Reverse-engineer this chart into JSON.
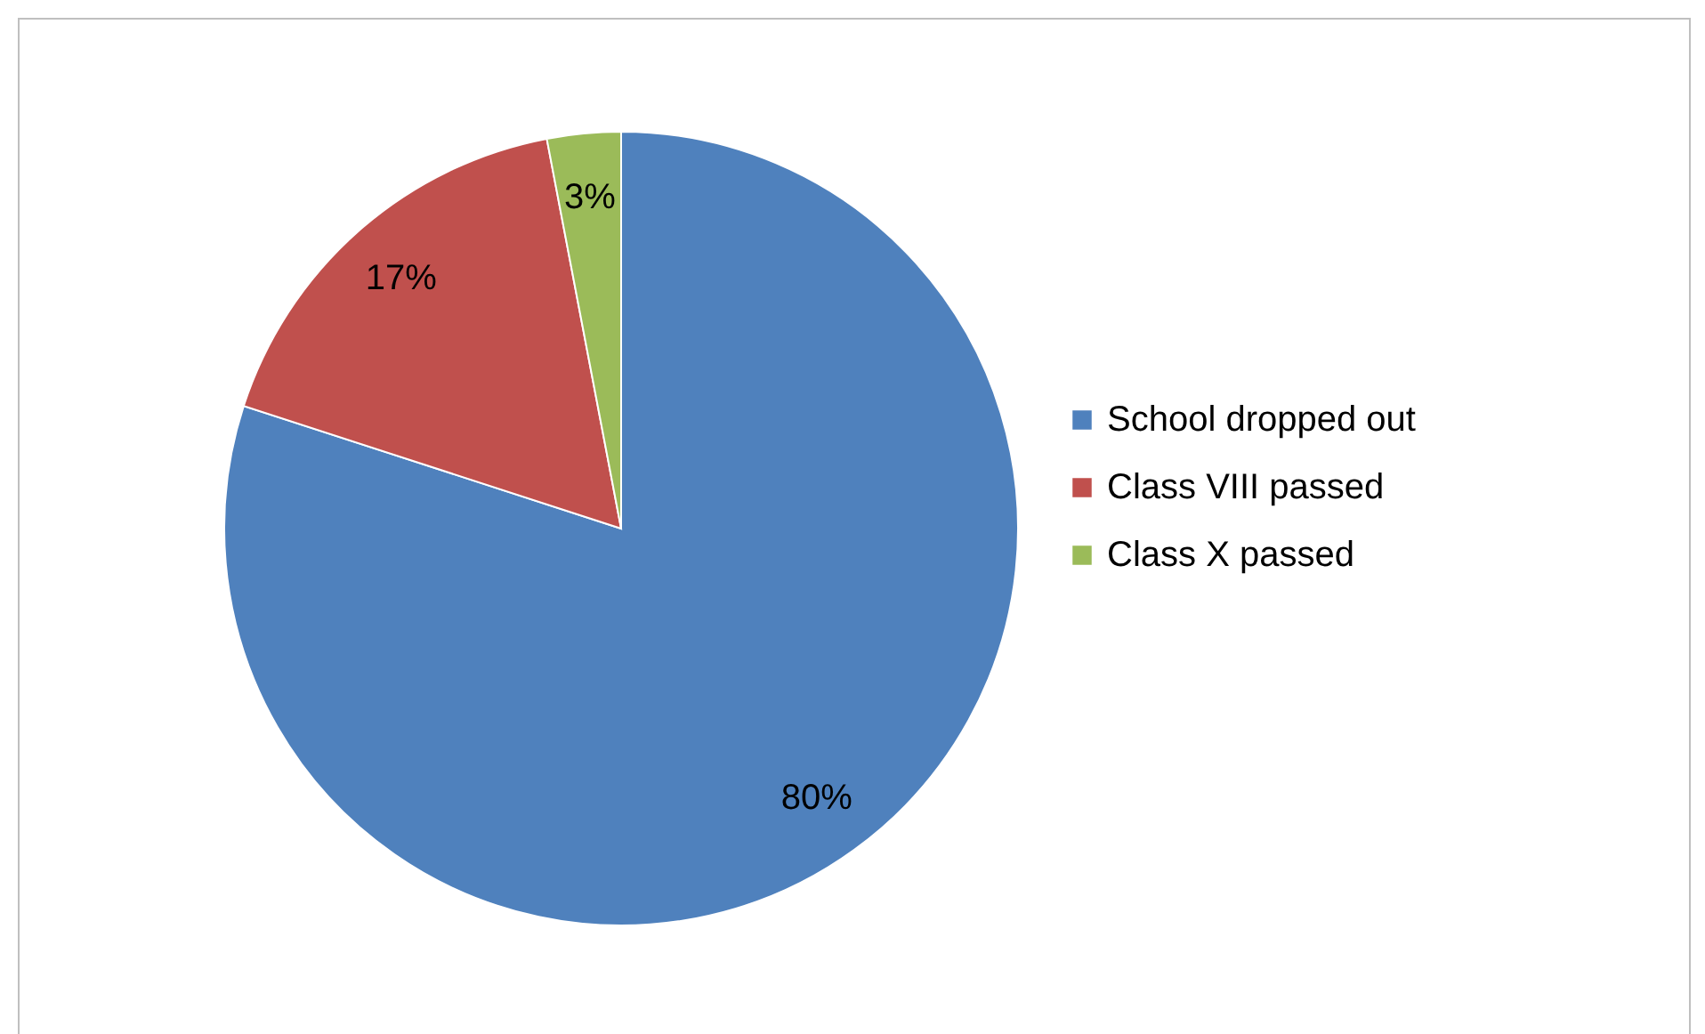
{
  "chart_data": {
    "type": "pie",
    "categories": [
      "School dropped out",
      "Class VIII passed",
      "Class X passed"
    ],
    "values": [
      80,
      17,
      3
    ],
    "colors": [
      "#4f81bd",
      "#c0504d",
      "#9bbb59"
    ],
    "value_labels": [
      "80%",
      "17%",
      "3%"
    ],
    "legend": "right"
  }
}
